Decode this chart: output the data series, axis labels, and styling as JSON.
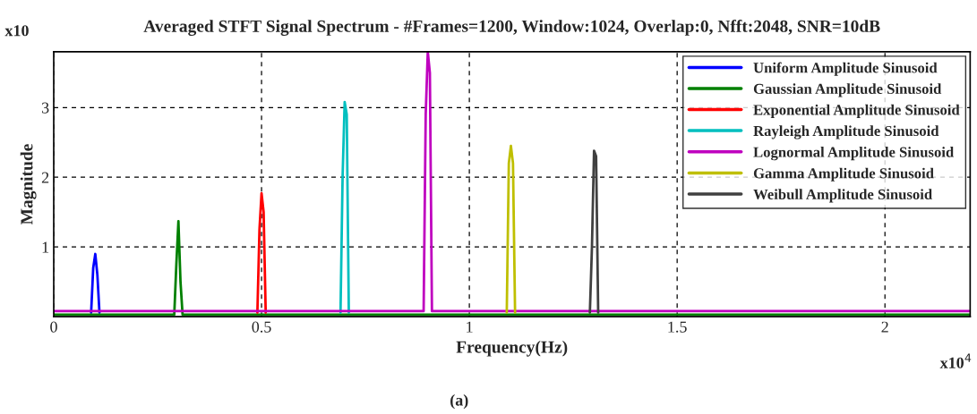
{
  "chart_data": {
    "type": "line",
    "title": "Averaged STFT Signal Spectrum - #Frames=1200, Window:1024, Overlap:0, Nfft:2048, SNR=10dB",
    "xlabel": "Frequency(Hz)",
    "ylabel": "Magnitude",
    "annotations": [
      "x10",
      "x10$^{4}$",
      "(a)"
    ],
    "xlim": [
      0,
      2.205
    ],
    "xticks": [
      0,
      0.5,
      1,
      1.5,
      2
    ],
    "ylim": [
      0,
      3.8
    ],
    "yticks": [
      1,
      2,
      3
    ],
    "grid": true,
    "legend": "top right",
    "line_style": "solid",
    "marker": "none",
    "series": [
      {
        "name": "Uniform Amplitude Sinusoid",
        "color": "#0000ff",
        "x": [
          0.09,
          0.095,
          0.1,
          0.105,
          0.11
        ],
        "values": [
          0.06,
          0.7,
          0.9,
          0.6,
          0.06
        ]
      },
      {
        "name": "Gaussian Amplitude Sinusoid",
        "color": "#008000",
        "x": [
          0,
          0.29,
          0.295,
          0.3,
          0.305,
          0.31,
          2.205
        ],
        "values": [
          0.03,
          0.03,
          0.75,
          1.37,
          0.5,
          0.03,
          0.03
        ]
      },
      {
        "name": "Exponential Amplitude Sinusoid",
        "color": "#ff0000",
        "x": [
          0.49,
          0.495,
          0.5,
          0.505,
          0.51
        ],
        "values": [
          0.06,
          1.25,
          1.77,
          1.5,
          0.06
        ]
      },
      {
        "name": "Rayleigh Amplitude Sinusoid",
        "color": "#00bfbf",
        "x": [
          0.69,
          0.695,
          0.7,
          0.705,
          0.71
        ],
        "values": [
          0.06,
          2.0,
          3.08,
          2.9,
          0.06
        ]
      },
      {
        "name": "Lognormal Amplitude Sinusoid",
        "color": "#bf00bf",
        "x": [
          0,
          0.89,
          0.895,
          0.9,
          0.905,
          0.91,
          2.205
        ],
        "values": [
          0.08,
          0.08,
          2.9,
          3.8,
          3.5,
          0.08,
          0.08
        ]
      },
      {
        "name": "Gamma Amplitude Sinusoid",
        "color": "#bfbf00",
        "x": [
          1.09,
          1.095,
          1.1,
          1.105,
          1.11
        ],
        "values": [
          0.06,
          2.2,
          2.45,
          2.2,
          0.06
        ]
      },
      {
        "name": "Weibull Amplitude Sinusoid",
        "color": "#404040",
        "x": [
          1.29,
          1.295,
          1.3,
          1.305,
          1.31
        ],
        "values": [
          0.06,
          1.0,
          2.38,
          2.3,
          0.06
        ]
      }
    ]
  }
}
